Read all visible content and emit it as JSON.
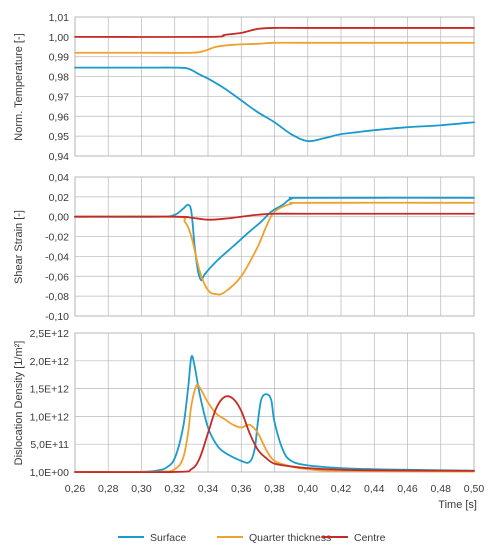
{
  "chart_data": [
    {
      "type": "line",
      "ylabel": "Norm. Temperature [-]",
      "xlim": [
        0.26,
        0.5
      ],
      "ylim": [
        0.94,
        1.01
      ],
      "yticks": [
        "0,94",
        "0,95",
        "0,96",
        "0,97",
        "0,98",
        "0,99",
        "1,00",
        "1,01"
      ],
      "grid": true,
      "series": [
        {
          "name": "Surface",
          "color": "#1a9bcc",
          "points": [
            [
              0.26,
              0.9845
            ],
            [
              0.3,
              0.9845
            ],
            [
              0.32,
              0.9845
            ],
            [
              0.328,
              0.984
            ],
            [
              0.335,
              0.981
            ],
            [
              0.34,
              0.979
            ],
            [
              0.35,
              0.974
            ],
            [
              0.36,
              0.968
            ],
            [
              0.37,
              0.962
            ],
            [
              0.38,
              0.957
            ],
            [
              0.39,
              0.951
            ],
            [
              0.4,
              0.9475
            ],
            [
              0.41,
              0.949
            ],
            [
              0.42,
              0.951
            ],
            [
              0.43,
              0.952
            ],
            [
              0.44,
              0.953
            ],
            [
              0.46,
              0.9545
            ],
            [
              0.48,
              0.9555
            ],
            [
              0.5,
              0.957
            ]
          ]
        },
        {
          "name": "Quarter thickness",
          "color": "#f0a02c",
          "points": [
            [
              0.26,
              0.992
            ],
            [
              0.3,
              0.992
            ],
            [
              0.33,
              0.992
            ],
            [
              0.338,
              0.993
            ],
            [
              0.345,
              0.995
            ],
            [
              0.355,
              0.996
            ],
            [
              0.37,
              0.9965
            ],
            [
              0.38,
              0.997
            ],
            [
              0.4,
              0.997
            ],
            [
              0.5,
              0.997
            ]
          ]
        },
        {
          "name": "Centre",
          "color": "#c42b26",
          "points": [
            [
              0.26,
              1.0
            ],
            [
              0.34,
              1.0
            ],
            [
              0.35,
              1.001
            ],
            [
              0.36,
              1.002
            ],
            [
              0.37,
              1.004
            ],
            [
              0.38,
              1.0045
            ],
            [
              0.4,
              1.0045
            ],
            [
              0.5,
              1.0045
            ]
          ]
        }
      ]
    },
    {
      "type": "line",
      "ylabel": "Shear Strain [-]",
      "xlim": [
        0.26,
        0.5
      ],
      "ylim": [
        -0.1,
        0.04
      ],
      "yticks": [
        "-0,10",
        "-0,08",
        "-0,06",
        "-0,04",
        "-0,02",
        "0,00",
        "0,02",
        "0,04"
      ],
      "grid": true,
      "series": [
        {
          "name": "Surface",
          "color": "#1a9bcc",
          "points": [
            [
              0.26,
              0.0
            ],
            [
              0.31,
              0.0
            ],
            [
              0.32,
              0.002
            ],
            [
              0.325,
              0.008
            ],
            [
              0.328,
              0.012
            ],
            [
              0.33,
              0.005
            ],
            [
              0.332,
              -0.03
            ],
            [
              0.334,
              -0.055
            ],
            [
              0.336,
              -0.064
            ],
            [
              0.338,
              -0.058
            ],
            [
              0.345,
              -0.045
            ],
            [
              0.355,
              -0.03
            ],
            [
              0.365,
              -0.015
            ],
            [
              0.372,
              -0.005
            ],
            [
              0.378,
              0.005
            ],
            [
              0.385,
              0.012
            ],
            [
              0.39,
              0.018
            ],
            [
              0.4,
              0.019
            ],
            [
              0.5,
              0.019
            ]
          ]
        },
        {
          "name": "Quarter thickness",
          "color": "#f0a02c",
          "points": [
            [
              0.26,
              0.0
            ],
            [
              0.32,
              0.0
            ],
            [
              0.326,
              -0.005
            ],
            [
              0.33,
              -0.02
            ],
            [
              0.335,
              -0.055
            ],
            [
              0.34,
              -0.074
            ],
            [
              0.345,
              -0.078
            ],
            [
              0.35,
              -0.076
            ],
            [
              0.36,
              -0.06
            ],
            [
              0.37,
              -0.03
            ],
            [
              0.375,
              -0.01
            ],
            [
              0.38,
              0.005
            ],
            [
              0.39,
              0.013
            ],
            [
              0.4,
              0.014
            ],
            [
              0.5,
              0.014
            ]
          ]
        },
        {
          "name": "Centre",
          "color": "#c42b26",
          "points": [
            [
              0.26,
              0.0
            ],
            [
              0.32,
              0.0
            ],
            [
              0.33,
              -0.001
            ],
            [
              0.34,
              -0.003
            ],
            [
              0.35,
              -0.002
            ],
            [
              0.36,
              0.0
            ],
            [
              0.37,
              0.002
            ],
            [
              0.38,
              0.003
            ],
            [
              0.4,
              0.003
            ],
            [
              0.5,
              0.003
            ]
          ]
        }
      ]
    },
    {
      "type": "line",
      "ylabel": "Dislocation Density [1/m²]",
      "xlabel": "Time [s]",
      "xlim": [
        0.26,
        0.5
      ],
      "ylim": [
        1.0,
        2500000000000.0
      ],
      "yticks": [
        "1,0E+00",
        "5,0E+11",
        "1,0E+12",
        "1,5E+12",
        "2,0E+12",
        "2,5E+12"
      ],
      "xticks": [
        "0,26",
        "0,28",
        "0,30",
        "0,32",
        "0,34",
        "0,36",
        "0,38",
        "0,40",
        "0,42",
        "0,44",
        "0,46",
        "0,48",
        "0,50"
      ],
      "grid": true,
      "series": [
        {
          "name": "Surface",
          "color": "#1a9bcc",
          "points": [
            [
              0.26,
              1
            ],
            [
              0.3,
              5000000000.0
            ],
            [
              0.31,
              30000000000.0
            ],
            [
              0.315,
              80000000000.0
            ],
            [
              0.32,
              250000000000.0
            ],
            [
              0.325,
              800000000000.0
            ],
            [
              0.328,
              1500000000000.0
            ],
            [
              0.33,
              2070000000000.0
            ],
            [
              0.332,
              1900000000000.0
            ],
            [
              0.335,
              1400000000000.0
            ],
            [
              0.34,
              800000000000.0
            ],
            [
              0.345,
              500000000000.0
            ],
            [
              0.35,
              350000000000.0
            ],
            [
              0.36,
              200000000000.0
            ],
            [
              0.365,
              180000000000.0
            ],
            [
              0.368,
              400000000000.0
            ],
            [
              0.37,
              900000000000.0
            ],
            [
              0.372,
              1300000000000.0
            ],
            [
              0.375,
              1400000000000.0
            ],
            [
              0.378,
              1300000000000.0
            ],
            [
              0.38,
              900000000000.0
            ],
            [
              0.385,
              400000000000.0
            ],
            [
              0.39,
              200000000000.0
            ],
            [
              0.4,
              120000000000.0
            ],
            [
              0.42,
              70000000000.0
            ],
            [
              0.44,
              50000000000.0
            ],
            [
              0.46,
              40000000000.0
            ],
            [
              0.48,
              30000000000.0
            ],
            [
              0.5,
              25000000000.0
            ]
          ]
        },
        {
          "name": "Quarter thickness",
          "color": "#f0a02c",
          "points": [
            [
              0.26,
              1
            ],
            [
              0.31,
              5000000000.0
            ],
            [
              0.32,
              50000000000.0
            ],
            [
              0.325,
              250000000000.0
            ],
            [
              0.328,
              700000000000.0
            ],
            [
              0.33,
              1200000000000.0
            ],
            [
              0.333,
              1550000000000.0
            ],
            [
              0.335,
              1520000000000.0
            ],
            [
              0.34,
              1250000000000.0
            ],
            [
              0.345,
              1050000000000.0
            ],
            [
              0.35,
              950000000000.0
            ],
            [
              0.355,
              850000000000.0
            ],
            [
              0.36,
              800000000000.0
            ],
            [
              0.365,
              850000000000.0
            ],
            [
              0.37,
              700000000000.0
            ],
            [
              0.375,
              400000000000.0
            ],
            [
              0.38,
              200000000000.0
            ],
            [
              0.39,
              100000000000.0
            ],
            [
              0.4,
              50000000000.0
            ],
            [
              0.42,
              20000000000.0
            ],
            [
              0.5,
              10000000000.0
            ]
          ]
        },
        {
          "name": "Centre",
          "color": "#c42b26",
          "points": [
            [
              0.26,
              1
            ],
            [
              0.32,
              1000000000.0
            ],
            [
              0.33,
              50000000000.0
            ],
            [
              0.335,
              250000000000.0
            ],
            [
              0.34,
              700000000000.0
            ],
            [
              0.345,
              1150000000000.0
            ],
            [
              0.35,
              1350000000000.0
            ],
            [
              0.355,
              1320000000000.0
            ],
            [
              0.36,
              1100000000000.0
            ],
            [
              0.365,
              700000000000.0
            ],
            [
              0.37,
              400000000000.0
            ],
            [
              0.375,
              250000000000.0
            ],
            [
              0.38,
              150000000000.0
            ],
            [
              0.39,
              100000000000.0
            ],
            [
              0.4,
              70000000000.0
            ],
            [
              0.42,
              40000000000.0
            ],
            [
              0.44,
              30000000000.0
            ],
            [
              0.5,
              20000000000.0
            ]
          ]
        }
      ]
    }
  ],
  "legend": {
    "placement": "bottom-center",
    "items": [
      {
        "label": "Surface",
        "color": "#1a9bcc"
      },
      {
        "label": "Quarter thickness",
        "color": "#f0a02c"
      },
      {
        "label": "Centre",
        "color": "#c42b26"
      }
    ]
  }
}
